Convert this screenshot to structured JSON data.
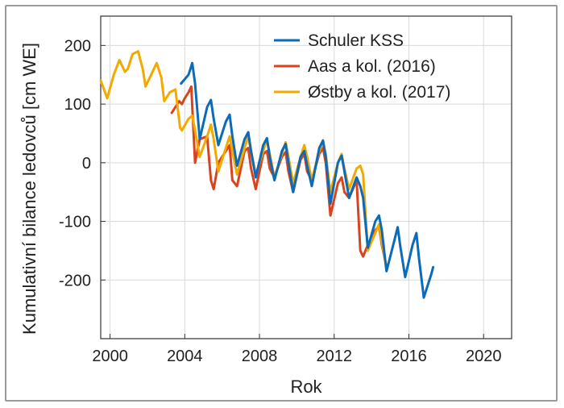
{
  "chart_data": {
    "type": "line",
    "title": "",
    "xlabel": "Rok",
    "ylabel": "Kumulativní bilance ledovců [cm WE]",
    "xlim": [
      1999.5,
      2021.5
    ],
    "ylim": [
      -300,
      250
    ],
    "xticks": [
      2000,
      2004,
      2008,
      2012,
      2016,
      2020
    ],
    "yticks": [
      200,
      100,
      0,
      -100,
      -200
    ],
    "xtick_labels": [
      "2000",
      "2004",
      "2008",
      "2012",
      "2016",
      "2020"
    ],
    "ytick_labels": [
      "200",
      "100",
      "0",
      "-100",
      "-200"
    ],
    "grid": true,
    "legend_position": "top-right",
    "colors": {
      "grid": "#d9d9d9",
      "axis": "#333333"
    },
    "series": [
      {
        "name": "Schuler KSS",
        "color": "#0b6bb8",
        "x": [
          2003.8,
          2004.2,
          2004.4,
          2004.55,
          2004.8,
          2005.2,
          2005.4,
          2005.55,
          2005.8,
          2006.2,
          2006.4,
          2006.55,
          2006.8,
          2007.2,
          2007.4,
          2007.55,
          2007.8,
          2008.2,
          2008.4,
          2008.55,
          2008.8,
          2009.2,
          2009.4,
          2009.55,
          2009.8,
          2010.2,
          2010.4,
          2010.55,
          2010.8,
          2011.2,
          2011.4,
          2011.55,
          2011.8,
          2012.2,
          2012.4,
          2012.55,
          2012.8,
          2013.2,
          2013.4,
          2013.55,
          2013.8,
          2014.2,
          2014.4,
          2014.55,
          2014.8,
          2015.2,
          2015.4,
          2015.55,
          2015.8,
          2016.2,
          2016.4,
          2016.55,
          2016.8,
          2017.2,
          2017.3
        ],
        "y": [
          135,
          150,
          170,
          135,
          40,
          95,
          107,
          75,
          30,
          70,
          82,
          45,
          -5,
          40,
          52,
          20,
          -25,
          30,
          42,
          10,
          -30,
          20,
          32,
          0,
          -50,
          10,
          20,
          -5,
          -40,
          25,
          38,
          10,
          -70,
          0,
          12,
          -15,
          -60,
          -25,
          -40,
          -60,
          -145,
          -100,
          -90,
          -115,
          -185,
          -135,
          -110,
          -145,
          -195,
          -140,
          -120,
          -165,
          -230,
          -190,
          -178
        ]
      },
      {
        "name": "Aas a kol. (2016)",
        "color": "#d9431e",
        "x": [
          2003.3,
          2003.7,
          2003.85,
          2004.0,
          2004.2,
          2004.35,
          2004.55,
          2004.8,
          2005.2,
          2005.4,
          2005.55,
          2005.8,
          2006.2,
          2006.4,
          2006.55,
          2006.8,
          2007.2,
          2007.4,
          2007.55,
          2007.8,
          2008.2,
          2008.4,
          2008.55,
          2008.8,
          2009.2,
          2009.4,
          2009.55,
          2009.8,
          2010.2,
          2010.4,
          2010.55,
          2010.8,
          2011.2,
          2011.4,
          2011.55,
          2011.8,
          2012.2,
          2012.4,
          2012.55,
          2012.8,
          2013.2,
          2013.4,
          2013.55,
          2013.8,
          2014.2,
          2014.4,
          2014.55,
          2014.8
        ],
        "y": [
          85,
          105,
          100,
          110,
          120,
          130,
          0,
          40,
          45,
          -30,
          -45,
          0,
          20,
          30,
          -30,
          -40,
          20,
          25,
          -10,
          -45,
          15,
          20,
          -10,
          -25,
          10,
          18,
          -15,
          -50,
          5,
          15,
          -15,
          -30,
          15,
          25,
          0,
          -90,
          -35,
          -25,
          -50,
          -60,
          -30,
          -150,
          -160,
          -140,
          -115,
          -108,
          -140,
          -178
        ]
      },
      {
        "name": "Østby a kol. (2017)",
        "color": "#f2a900",
        "x": [
          1999.5,
          1999.85,
          2000.2,
          2000.5,
          2000.8,
          2000.95,
          2001.2,
          2001.5,
          2001.75,
          2001.9,
          2002.2,
          2002.5,
          2002.75,
          2002.9,
          2003.2,
          2003.5,
          2003.75,
          2003.85,
          2004.2,
          2004.4,
          2004.55,
          2004.8,
          2005.2,
          2005.4,
          2005.55,
          2005.8,
          2006.2,
          2006.4,
          2006.55,
          2006.8,
          2007.2,
          2007.4,
          2007.55,
          2007.8,
          2008.2,
          2008.4,
          2008.55,
          2008.8,
          2009.2,
          2009.4,
          2009.55,
          2009.8,
          2010.2,
          2010.4,
          2010.55,
          2010.8,
          2011.2,
          2011.4,
          2011.55,
          2011.8,
          2012.2,
          2012.4,
          2012.55,
          2012.8,
          2013.2,
          2013.4,
          2013.55,
          2013.8,
          2014.2,
          2014.4,
          2014.55,
          2014.8
        ],
        "y": [
          140,
          110,
          150,
          175,
          155,
          160,
          185,
          190,
          160,
          130,
          150,
          170,
          145,
          105,
          120,
          125,
          60,
          55,
          75,
          80,
          55,
          10,
          45,
          65,
          40,
          -15,
          25,
          45,
          20,
          -20,
          25,
          45,
          20,
          -20,
          20,
          40,
          15,
          -25,
          15,
          35,
          10,
          -35,
          10,
          30,
          10,
          -30,
          20,
          35,
          15,
          -50,
          0,
          15,
          -10,
          -45,
          -10,
          -5,
          -20,
          -150,
          -120,
          -105,
          -135,
          -180
        ]
      }
    ]
  }
}
